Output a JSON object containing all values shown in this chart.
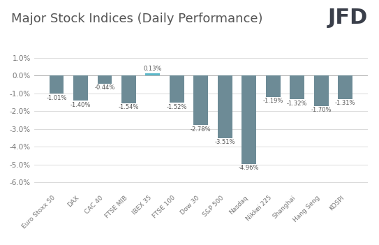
{
  "title": "Major Stock Indices (Daily Performance)",
  "categories": [
    "Euro Stoxx 50",
    "DAX",
    "CAC 40",
    "FTSE MIB",
    "IBEX 35",
    "FTSE 100",
    "Dow 30",
    "S&P 500",
    "Nasdaq",
    "Nikkei 225",
    "Shanghai",
    "Hang Seng",
    "KOSPI"
  ],
  "values": [
    -1.01,
    -1.4,
    -0.44,
    -1.54,
    0.13,
    -1.52,
    -2.78,
    -3.51,
    -4.96,
    -1.19,
    -1.32,
    -1.7,
    -1.31
  ],
  "labels": [
    "-1.01%",
    "-1.40%",
    "-0.44%",
    "-1.54%",
    "0.13%",
    "-1.52%",
    "-2.78%",
    "-3.51%",
    "-4.96%",
    "-1.19%",
    "-1.32%",
    "-1.70%",
    "-1.31%"
  ],
  "bar_color_default": "#6d8b96",
  "bar_color_positive": "#5bb8ca",
  "ylim": [
    -6.5,
    1.5
  ],
  "yticks": [
    1.0,
    0.0,
    -1.0,
    -2.0,
    -3.0,
    -4.0,
    -5.0,
    -6.0
  ],
  "ytick_labels": [
    "1.0%",
    "0.0%",
    "-1.0%",
    "-2.0%",
    "-3.0%",
    "-4.0%",
    "-5.0%",
    "-6.0%"
  ],
  "title_fontsize": 13,
  "label_fontsize": 6.0,
  "tick_fontsize": 7.5,
  "xtick_fontsize": 6.5,
  "background_color": "#ffffff",
  "grid_color": "#d5d5d5",
  "jfd_fontsize": 22,
  "jfd_color": "#3a3f4a"
}
